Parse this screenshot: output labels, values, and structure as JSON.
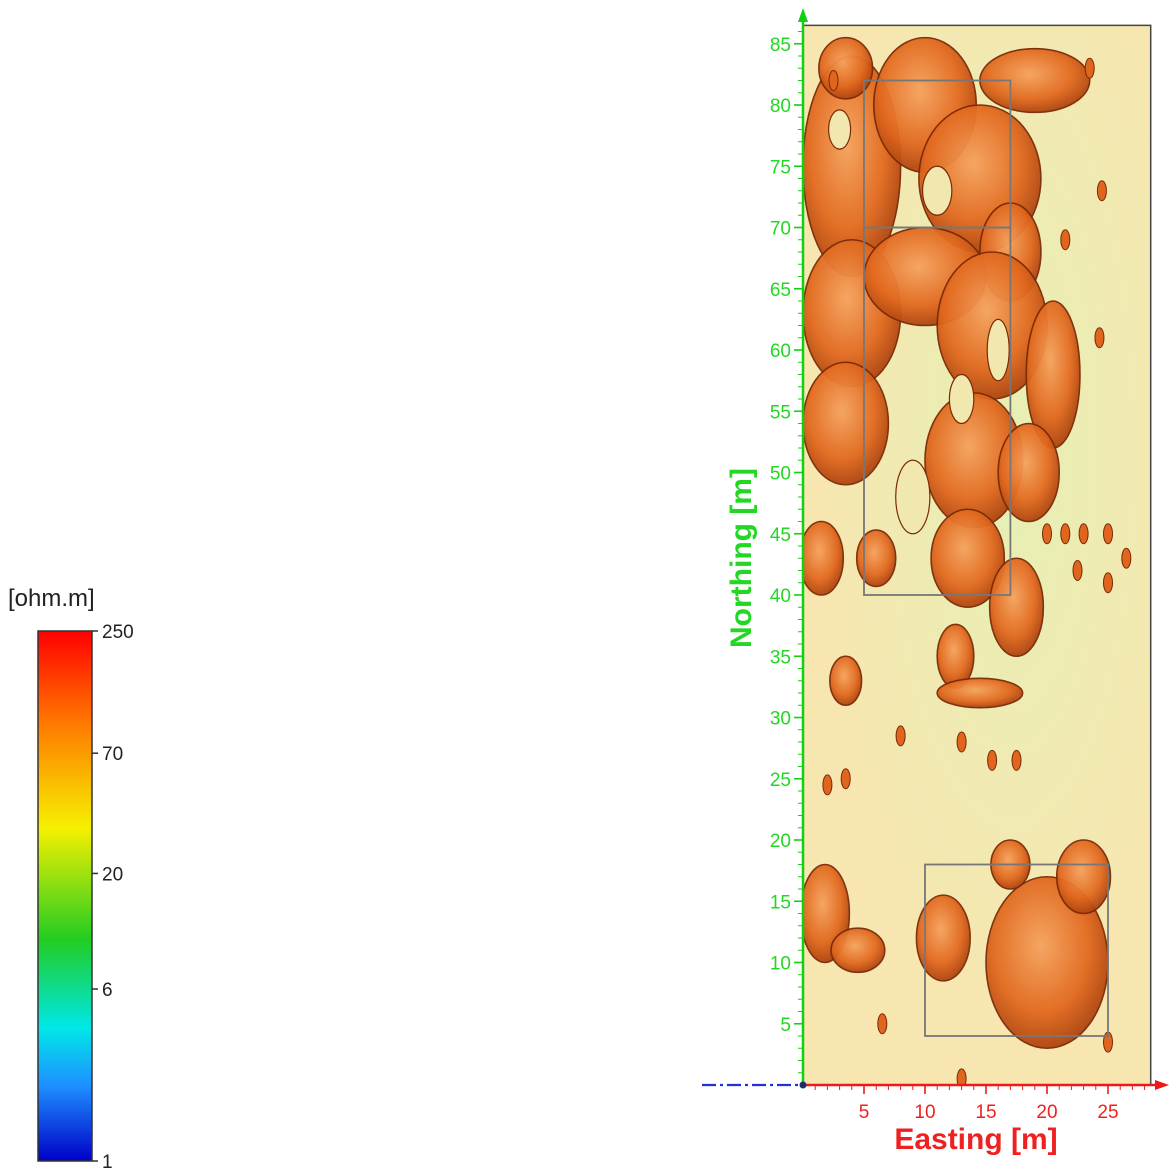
{
  "chart_data": {
    "type": "heatmap",
    "xlabel": "Easting [m]",
    "ylabel": "Northing [m]",
    "xlim": [
      0,
      28.5
    ],
    "ylim": [
      0,
      86.5
    ],
    "x_ticks": [
      5,
      10,
      15,
      20,
      25
    ],
    "y_ticks": [
      5,
      10,
      15,
      20,
      25,
      30,
      35,
      40,
      45,
      50,
      55,
      60,
      65,
      70,
      75,
      80,
      85
    ],
    "colorbar": {
      "unit": "[ohm.m]",
      "scale": "log",
      "range": [
        1,
        250
      ],
      "labels": [
        "250",
        "70",
        "20",
        "6",
        "1"
      ],
      "stops": [
        {
          "value": 1,
          "color": "#0000c8"
        },
        {
          "value": 2.2,
          "color": "#1e90ff"
        },
        {
          "value": 4,
          "color": "#00e8e8"
        },
        {
          "value": 10,
          "color": "#22cc22"
        },
        {
          "value": 32,
          "color": "#f5f000"
        },
        {
          "value": 90,
          "color": "#ff8000"
        },
        {
          "value": 250,
          "color": "#ff0000"
        }
      ]
    },
    "background_color": "#f7e6b0",
    "anomaly_color": "#e0661f",
    "survey_boxes": [
      {
        "x0": 5,
        "x1": 17,
        "y0": 70,
        "y1": 82
      },
      {
        "x0": 5,
        "x1": 17,
        "y0": 40,
        "y1": 70
      },
      {
        "x0": 10,
        "x1": 25,
        "y0": 4,
        "y1": 18
      }
    ],
    "high_resistivity_bodies": [
      {
        "cx": 4.0,
        "cy": 75,
        "rx": 4.0,
        "ry": 9
      },
      {
        "cx": 3.5,
        "cy": 83,
        "rx": 2.2,
        "ry": 2.5
      },
      {
        "cx": 10.0,
        "cy": 80,
        "rx": 4.2,
        "ry": 5.5
      },
      {
        "cx": 14.5,
        "cy": 74,
        "rx": 5.0,
        "ry": 6
      },
      {
        "cx": 19.0,
        "cy": 82,
        "rx": 4.5,
        "ry": 2.6
      },
      {
        "cx": 17.0,
        "cy": 68,
        "rx": 2.5,
        "ry": 4
      },
      {
        "cx": 4.0,
        "cy": 63,
        "rx": 4.0,
        "ry": 6
      },
      {
        "cx": 10.0,
        "cy": 66,
        "rx": 5.0,
        "ry": 4
      },
      {
        "cx": 15.5,
        "cy": 62,
        "rx": 4.5,
        "ry": 6
      },
      {
        "cx": 20.5,
        "cy": 58,
        "rx": 2.2,
        "ry": 6
      },
      {
        "cx": 3.5,
        "cy": 54,
        "rx": 3.5,
        "ry": 5
      },
      {
        "cx": 14.0,
        "cy": 51,
        "rx": 4.0,
        "ry": 5.5
      },
      {
        "cx": 18.5,
        "cy": 50,
        "rx": 2.5,
        "ry": 4
      },
      {
        "cx": 1.5,
        "cy": 43,
        "rx": 1.8,
        "ry": 3
      },
      {
        "cx": 6.0,
        "cy": 43,
        "rx": 1.6,
        "ry": 2.3
      },
      {
        "cx": 13.5,
        "cy": 43,
        "rx": 3.0,
        "ry": 4
      },
      {
        "cx": 17.5,
        "cy": 39,
        "rx": 2.2,
        "ry": 4
      },
      {
        "cx": 12.5,
        "cy": 35,
        "rx": 1.5,
        "ry": 2.6
      },
      {
        "cx": 14.5,
        "cy": 32,
        "rx": 3.5,
        "ry": 1.2
      },
      {
        "cx": 3.5,
        "cy": 33,
        "rx": 1.3,
        "ry": 2
      },
      {
        "cx": 1.8,
        "cy": 14,
        "rx": 2.0,
        "ry": 4
      },
      {
        "cx": 4.5,
        "cy": 11,
        "rx": 2.2,
        "ry": 1.8
      },
      {
        "cx": 11.5,
        "cy": 12,
        "rx": 2.2,
        "ry": 3.5
      },
      {
        "cx": 20.0,
        "cy": 10,
        "rx": 5.0,
        "ry": 7
      },
      {
        "cx": 23.0,
        "cy": 17,
        "rx": 2.2,
        "ry": 3
      },
      {
        "cx": 17.0,
        "cy": 18,
        "rx": 1.6,
        "ry": 2
      }
    ],
    "small_anomalies": [
      {
        "x": 24.5,
        "y": 73
      },
      {
        "x": 21.5,
        "y": 69
      },
      {
        "x": 24.3,
        "y": 61
      },
      {
        "x": 20.0,
        "y": 45
      },
      {
        "x": 21.5,
        "y": 45
      },
      {
        "x": 23.0,
        "y": 45
      },
      {
        "x": 25.0,
        "y": 45
      },
      {
        "x": 26.5,
        "y": 43
      },
      {
        "x": 25.0,
        "y": 41
      },
      {
        "x": 22.5,
        "y": 42
      },
      {
        "x": 13.0,
        "y": 28
      },
      {
        "x": 15.5,
        "y": 26.5
      },
      {
        "x": 17.5,
        "y": 26.5
      },
      {
        "x": 8.0,
        "y": 28.5
      },
      {
        "x": 3.5,
        "y": 25
      },
      {
        "x": 2.0,
        "y": 24.5
      },
      {
        "x": 6.5,
        "y": 5
      },
      {
        "x": 25.0,
        "y": 3.5
      },
      {
        "x": 13.0,
        "y": 0.5
      },
      {
        "x": 2.5,
        "y": 82
      },
      {
        "x": 23.5,
        "y": 83
      }
    ]
  }
}
